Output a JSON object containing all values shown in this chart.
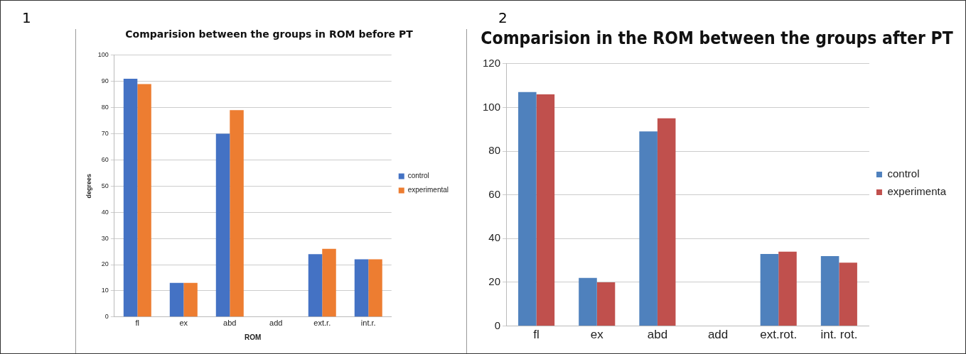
{
  "chart_data": [
    {
      "type": "bar",
      "title": "Comparision between the groups in ROM before PT",
      "xlabel": "ROM",
      "ylabel": "degrees",
      "annotations": [
        "1"
      ],
      "categories": [
        "fl",
        "ex",
        "abd",
        "add",
        "ext.r.",
        "int.r."
      ],
      "series": [
        {
          "name": "control",
          "color": "#4472c4",
          "values": [
            91,
            13,
            70,
            0,
            24,
            22
          ]
        },
        {
          "name": "experimental",
          "color": "#ed7d31",
          "values": [
            89,
            13,
            79,
            0,
            26,
            22
          ]
        }
      ],
      "ylim": [
        0,
        100
      ],
      "yticks": [
        0,
        10,
        20,
        30,
        40,
        50,
        60,
        70,
        80,
        90,
        100
      ],
      "grid": "y",
      "legend": "right"
    },
    {
      "type": "bar",
      "title": "Comparision in the ROM between the groups after PT",
      "annotations": [
        "2"
      ],
      "categories": [
        "fl",
        "ex",
        "abd",
        "add",
        "ext.rot.",
        "int. rot."
      ],
      "series": [
        {
          "name": "control",
          "color": "#4f81bd",
          "values": [
            107,
            22,
            89,
            0,
            33,
            32
          ]
        },
        {
          "name": "experimenta",
          "color": "#c0504d",
          "values": [
            106,
            20,
            95,
            0,
            34,
            29
          ]
        }
      ],
      "ylim": [
        0,
        120
      ],
      "yticks": [
        0,
        20,
        40,
        60,
        80,
        100,
        120
      ],
      "grid": "y",
      "legend": "right"
    }
  ]
}
